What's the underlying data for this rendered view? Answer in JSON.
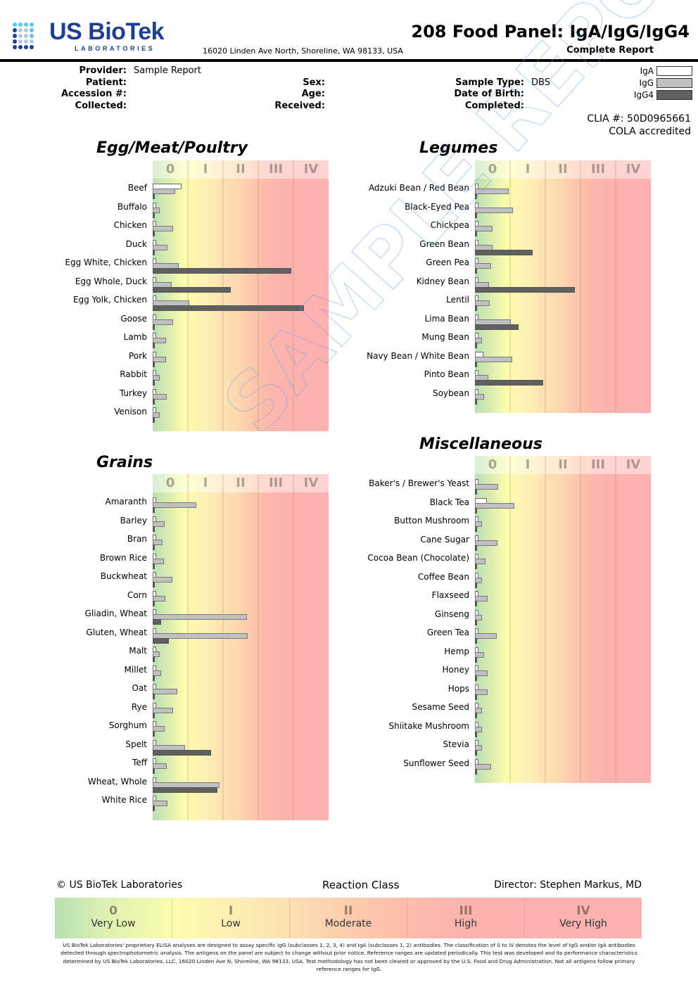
{
  "header": {
    "logo_text": "US BioTek",
    "logo_subtext": "LABORATORIES",
    "address": "16020 Linden Ave North, Shoreline, WA 98133, USA",
    "title": "208 Food Panel: IgA/IgG/IgG4",
    "subtitle": "Complete Report"
  },
  "patient_info": {
    "provider_label": "Provider:",
    "provider_value": "Sample Report",
    "patient_label": "Patient:",
    "patient_value": "",
    "accession_label": "Accession #:",
    "accession_value": "",
    "collected_label": "Collected:",
    "collected_value": "",
    "sex_label": "Sex:",
    "sex_value": "",
    "age_label": "Age:",
    "age_value": "",
    "received_label": "Received:",
    "received_value": "",
    "sample_type_label": "Sample Type:",
    "sample_type_value": "DBS",
    "dob_label": "Date of Birth:",
    "dob_value": "",
    "completed_label": "Completed:",
    "completed_value": ""
  },
  "legend": [
    {
      "label": "IgA",
      "color": "#ffffff"
    },
    {
      "label": "IgG",
      "color": "#c0c0c0"
    },
    {
      "label": "IgG4",
      "color": "#606060"
    }
  ],
  "clia": "CLIA #: 50D0965661",
  "cola": "COLA accredited",
  "watermark": "SAMPLE REPORT",
  "chart_data": [
    {
      "type": "bar",
      "title": "Egg/Meat/Poultry",
      "class_labels": [
        "0",
        "I",
        "II",
        "III",
        "IV"
      ],
      "xlim": [
        0,
        5
      ],
      "series_names": [
        "IgA",
        "IgG",
        "IgG4"
      ],
      "categories": [
        "Beef",
        "Buffalo",
        "Chicken",
        "Duck",
        "Egg White, Chicken",
        "Egg Whole, Duck",
        "Egg Yolk, Chicken",
        "Goose",
        "Lamb",
        "Pork",
        "Rabbit",
        "Turkey",
        "Venison"
      ],
      "series": [
        {
          "name": "IgA",
          "values": [
            0.82,
            0.1,
            0.1,
            0.1,
            0.1,
            0.1,
            0.1,
            0.1,
            0.1,
            0.1,
            0.1,
            0.1,
            0.1
          ]
        },
        {
          "name": "IgG",
          "values": [
            0.64,
            0.2,
            0.58,
            0.42,
            0.74,
            0.54,
            1.04,
            0.58,
            0.37,
            0.37,
            0.2,
            0.39,
            0.2
          ]
        },
        {
          "name": "IgG4",
          "values": [
            0.04,
            0.04,
            0.04,
            0.04,
            3.94,
            2.22,
            4.3,
            0.04,
            0.04,
            0.04,
            0.04,
            0.04,
            0.04
          ]
        }
      ]
    },
    {
      "type": "bar",
      "title": "Legumes",
      "class_labels": [
        "0",
        "I",
        "II",
        "III",
        "IV"
      ],
      "xlim": [
        0,
        5
      ],
      "series_names": [
        "IgA",
        "IgG",
        "IgG4"
      ],
      "categories": [
        "Adzuki Bean / Red Bean",
        "Black-Eyed Pea",
        "Chickpea",
        "Green Bean",
        "Green Pea",
        "Kidney Bean",
        "Lentil",
        "Lima Bean",
        "Mung Bean",
        "Navy Bean / White Bean",
        "Pinto Bean",
        "Soybean"
      ],
      "series": [
        {
          "name": "IgA",
          "values": [
            0.1,
            0.1,
            0.1,
            0.1,
            0.1,
            0.1,
            0.1,
            0.1,
            0.1,
            0.24,
            0.1,
            0.1
          ]
        },
        {
          "name": "IgG",
          "values": [
            0.96,
            1.08,
            0.5,
            0.5,
            0.46,
            0.4,
            0.42,
            1.02,
            0.2,
            1.06,
            0.38,
            0.26
          ]
        },
        {
          "name": "IgG4",
          "values": [
            0.04,
            0.04,
            0.04,
            1.64,
            0.04,
            2.84,
            0.04,
            1.24,
            0.04,
            0.04,
            1.94,
            0.04
          ]
        }
      ]
    },
    {
      "type": "bar",
      "title": "Grains",
      "class_labels": [
        "0",
        "I",
        "II",
        "III",
        "IV"
      ],
      "xlim": [
        0,
        5
      ],
      "series_names": [
        "IgA",
        "IgG",
        "IgG4"
      ],
      "categories": [
        "Amaranth",
        "Barley",
        "Bran",
        "Brown Rice",
        "Buckwheat",
        "Corn",
        "Gliadin, Wheat",
        "Gluten, Wheat",
        "Malt",
        "Millet",
        "Oat",
        "Rye",
        "Sorghum",
        "Spelt",
        "Teff",
        "Wheat, Whole",
        "White Rice"
      ],
      "series": [
        {
          "name": "IgA",
          "values": [
            0.1,
            0.1,
            0.1,
            0.1,
            0.1,
            0.1,
            0.1,
            0.1,
            0.1,
            0.1,
            0.1,
            0.1,
            0.1,
            0.1,
            0.1,
            0.1,
            0.1
          ]
        },
        {
          "name": "IgG",
          "values": [
            1.24,
            0.34,
            0.28,
            0.32,
            0.56,
            0.36,
            2.68,
            2.7,
            0.2,
            0.24,
            0.7,
            0.58,
            0.34,
            0.92,
            0.4,
            1.9,
            0.42
          ]
        },
        {
          "name": "IgG4",
          "values": [
            0.04,
            0.04,
            0.04,
            0.04,
            0.04,
            0.04,
            0.24,
            0.46,
            0.04,
            0.04,
            0.04,
            0.04,
            0.04,
            1.66,
            0.04,
            1.84,
            0.04
          ]
        }
      ]
    },
    {
      "type": "bar",
      "title": "Miscellaneous",
      "class_labels": [
        "0",
        "I",
        "II",
        "III",
        "IV"
      ],
      "xlim": [
        0,
        5
      ],
      "series_names": [
        "IgA",
        "IgG",
        "IgG4"
      ],
      "categories": [
        "Baker's / Brewer's Yeast",
        "Black Tea",
        "Button Mushroom",
        "Cane Sugar",
        "Cocoa Bean (Chocolate)",
        "Coffee Bean",
        "Flaxseed",
        "Ginseng",
        "Green Tea",
        "Hemp",
        "Honey",
        "Hops",
        "Sesame Seed",
        "Shiitake Mushroom",
        "Stevia",
        "Sunflower Seed"
      ],
      "series": [
        {
          "name": "IgA",
          "values": [
            0.1,
            0.34,
            0.1,
            0.1,
            0.1,
            0.1,
            0.1,
            0.1,
            0.1,
            0.1,
            0.1,
            0.1,
            0.1,
            0.1,
            0.1,
            0.1
          ]
        },
        {
          "name": "IgG",
          "values": [
            0.66,
            1.12,
            0.2,
            0.64,
            0.3,
            0.2,
            0.36,
            0.2,
            0.62,
            0.26,
            0.36,
            0.36,
            0.2,
            0.2,
            0.2,
            0.46
          ]
        },
        {
          "name": "IgG4",
          "values": [
            0.04,
            0.04,
            0.04,
            0.04,
            0.04,
            0.04,
            0.04,
            0.04,
            0.04,
            0.04,
            0.04,
            0.04,
            0.04,
            0.04,
            0.04,
            0.04
          ]
        }
      ]
    }
  ],
  "footer": {
    "copyright": "© US BioTek Laboratories",
    "reaction_class_title": "Reaction Class",
    "director": "Director: Stephen Markus, MD",
    "scale": [
      {
        "num": "0",
        "name": "Very Low"
      },
      {
        "num": "I",
        "name": "Low"
      },
      {
        "num": "II",
        "name": "Moderate"
      },
      {
        "num": "III",
        "name": "High"
      },
      {
        "num": "IV",
        "name": "Very High"
      }
    ],
    "disclaimer": "US BioTek Laboratories' proprietary ELISA analyses are designed to assay specific IgG (subclasses 1, 2, 3, 4) and IgA (subclasses 1, 2) antibodies. The classification of 0 to IV denotes the level of IgG and/or IgA antibodies detected through spectrophotometric analysis. The antigens on the panel are subject to change without prior notice. Reference ranges are updated periodically. This test was developed and its performance characteristics determined by US BioTek Laboratories, LLC, 16020 Linden Ave N, Shoreline, WA 98133, USA. Test methodology has not been cleared or approved by the U.S. Food and Drug Administration. Not all antigens follow primary reference ranges for IgG."
  }
}
